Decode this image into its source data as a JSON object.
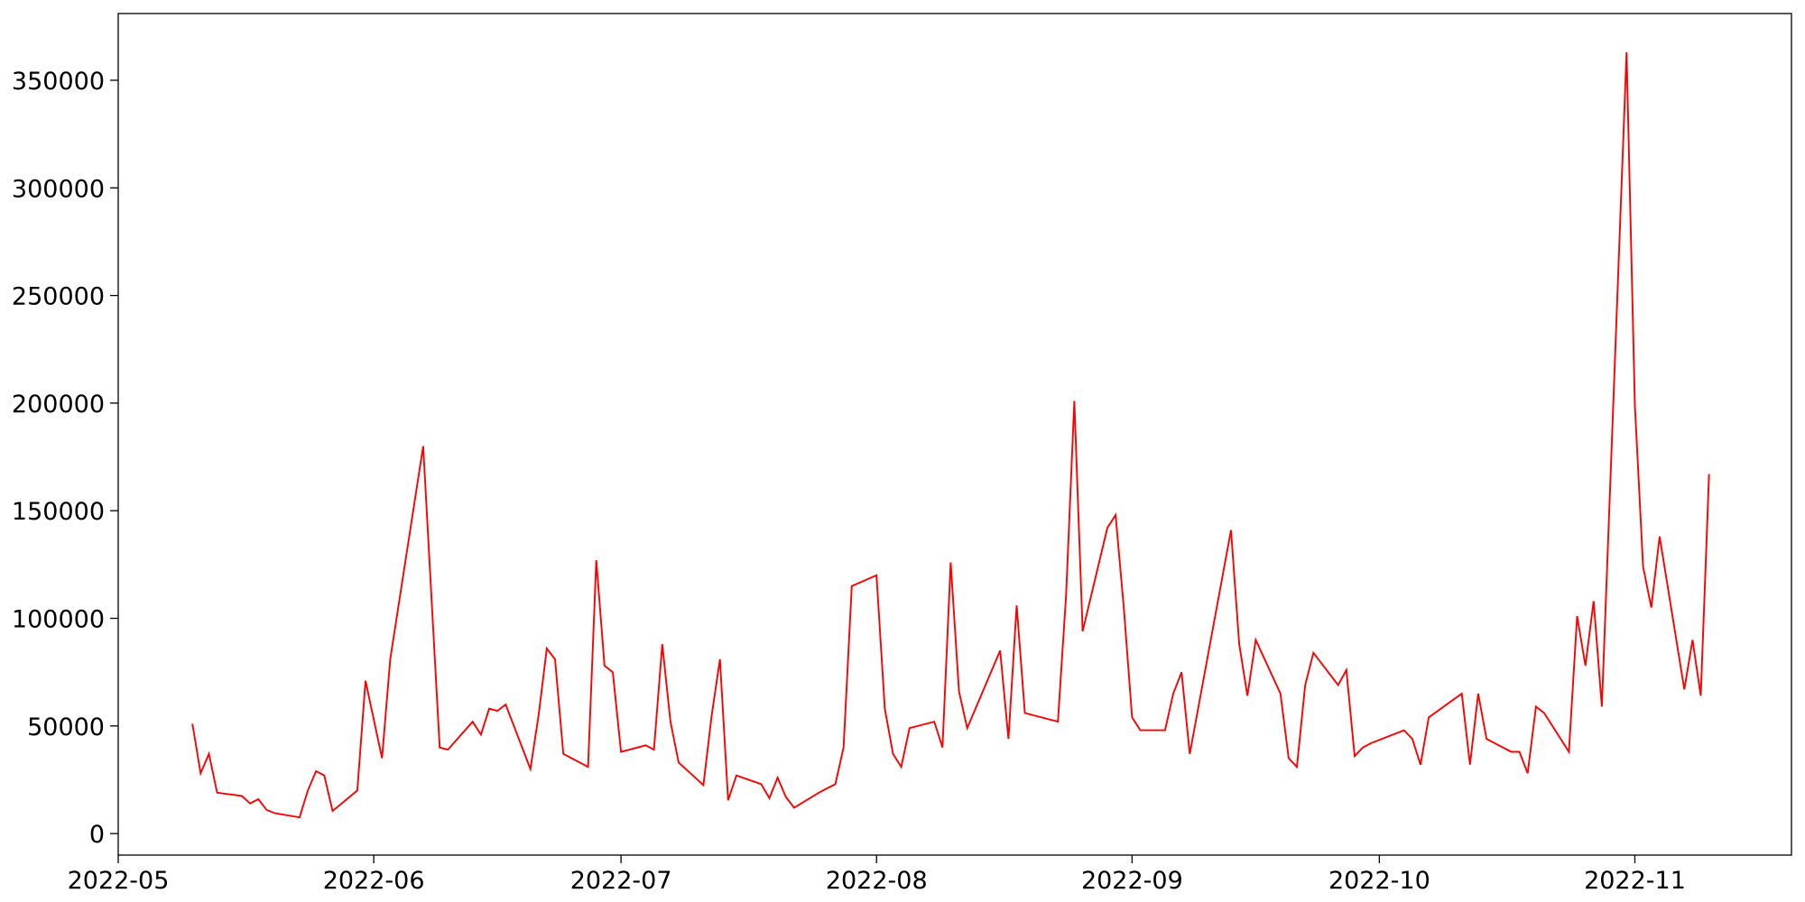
{
  "chart_data": {
    "type": "line",
    "title": "",
    "xlabel": "",
    "ylabel": "",
    "grid": false,
    "line_color": "#ff0000",
    "xlim": [
      "2022-05-01",
      "2022-11-20"
    ],
    "ylim": [
      -10000,
      381000
    ],
    "x_ticks": [
      "2022-05",
      "2022-06",
      "2022-07",
      "2022-08",
      "2022-09",
      "2022-10",
      "2022-11"
    ],
    "y_ticks": [
      "0",
      "50000",
      "100000",
      "150000",
      "200000",
      "250000",
      "300000",
      "350000"
    ],
    "series": [
      {
        "x": [
          "2022-05-10",
          "2022-05-11",
          "2022-05-12",
          "2022-05-13",
          "2022-05-16",
          "2022-05-17",
          "2022-05-18",
          "2022-05-19",
          "2022-05-20",
          "2022-05-23",
          "2022-05-24",
          "2022-05-25",
          "2022-05-26",
          "2022-05-27",
          "2022-05-30",
          "2022-05-31",
          "2022-06-02",
          "2022-06-03",
          "2022-06-07",
          "2022-06-09",
          "2022-06-10",
          "2022-06-13",
          "2022-06-14",
          "2022-06-15",
          "2022-06-16",
          "2022-06-17",
          "2022-06-20",
          "2022-06-21",
          "2022-06-22",
          "2022-06-23",
          "2022-06-24",
          "2022-06-27",
          "2022-06-28",
          "2022-06-29",
          "2022-06-30",
          "2022-07-01",
          "2022-07-04",
          "2022-07-05",
          "2022-07-06",
          "2022-07-07",
          "2022-07-08",
          "2022-07-11",
          "2022-07-12",
          "2022-07-13",
          "2022-07-14",
          "2022-07-15",
          "2022-07-18",
          "2022-07-19",
          "2022-07-20",
          "2022-07-21",
          "2022-07-22",
          "2022-07-25",
          "2022-07-26",
          "2022-07-27",
          "2022-07-28",
          "2022-07-29",
          "2022-08-01",
          "2022-08-02",
          "2022-08-03",
          "2022-08-04",
          "2022-08-05",
          "2022-08-08",
          "2022-08-09",
          "2022-08-10",
          "2022-08-11",
          "2022-08-12",
          "2022-08-16",
          "2022-08-17",
          "2022-08-18",
          "2022-08-19",
          "2022-08-23",
          "2022-08-24",
          "2022-08-25",
          "2022-08-26",
          "2022-08-29",
          "2022-08-30",
          "2022-08-31",
          "2022-09-01",
          "2022-09-02",
          "2022-09-05",
          "2022-09-06",
          "2022-09-07",
          "2022-09-08",
          "2022-09-13",
          "2022-09-14",
          "2022-09-15",
          "2022-09-16",
          "2022-09-19",
          "2022-09-20",
          "2022-09-21",
          "2022-09-22",
          "2022-09-23",
          "2022-09-26",
          "2022-09-27",
          "2022-09-28",
          "2022-09-29",
          "2022-09-30",
          "2022-10-04",
          "2022-10-05",
          "2022-10-06",
          "2022-10-07",
          "2022-10-11",
          "2022-10-12",
          "2022-10-13",
          "2022-10-14",
          "2022-10-17",
          "2022-10-18",
          "2022-10-19",
          "2022-10-20",
          "2022-10-21",
          "2022-10-24",
          "2022-10-25",
          "2022-10-26",
          "2022-10-27",
          "2022-10-28",
          "2022-10-31",
          "2022-11-01",
          "2022-11-02",
          "2022-11-03",
          "2022-11-04",
          "2022-11-07",
          "2022-11-08",
          "2022-11-09",
          "2022-11-10"
        ],
        "y": [
          51000,
          28000,
          37000,
          19000,
          17500,
          14000,
          16000,
          11000,
          9500,
          7500,
          20000,
          29000,
          27000,
          10500,
          20000,
          71000,
          35000,
          81000,
          180000,
          40000,
          39000,
          52000,
          46000,
          58000,
          57000,
          60000,
          30000,
          55000,
          86000,
          81000,
          37000,
          31000,
          127000,
          78000,
          75000,
          38000,
          41000,
          39000,
          88000,
          52000,
          33000,
          22500,
          55000,
          81000,
          15500,
          27000,
          23000,
          16500,
          26000,
          17000,
          12000,
          19000,
          21000,
          23000,
          40000,
          115000,
          120000,
          58000,
          37000,
          31000,
          49000,
          52000,
          40000,
          126000,
          66000,
          49000,
          85000,
          44000,
          106000,
          56000,
          52000,
          111000,
          201000,
          94000,
          142000,
          148000,
          105000,
          54000,
          48000,
          48000,
          65000,
          75000,
          37000,
          141000,
          88000,
          64000,
          90000,
          65000,
          35000,
          31000,
          69000,
          84000,
          69000,
          76000,
          36000,
          40000,
          42000,
          48000,
          44000,
          32000,
          54000,
          65000,
          32000,
          65000,
          44000,
          38000,
          38000,
          28000,
          59000,
          56000,
          38000,
          101000,
          78000,
          108000,
          59000,
          363000,
          199000,
          124000,
          105000,
          138000,
          67000,
          90000,
          64000,
          167000
        ]
      }
    ]
  }
}
